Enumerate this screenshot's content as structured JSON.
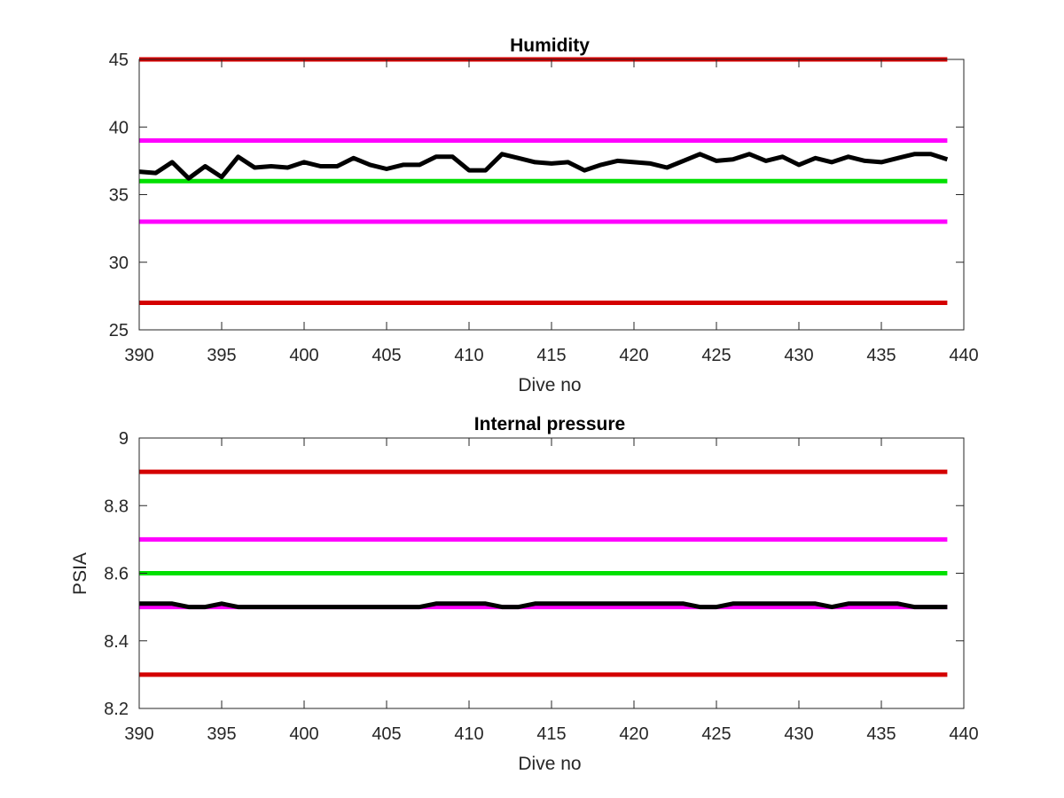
{
  "chart_data": [
    {
      "type": "line",
      "title": "Humidity",
      "xlabel": "Dive no",
      "ylabel": "",
      "xlim": [
        390,
        440
      ],
      "ylim": [
        25,
        45
      ],
      "xticks": [
        390,
        395,
        400,
        405,
        410,
        415,
        420,
        425,
        430,
        435,
        440
      ],
      "yticks": [
        25,
        30,
        35,
        40,
        45
      ],
      "grid": false,
      "reference_lines": [
        {
          "y": 45,
          "color": "#d40000"
        },
        {
          "y": 39,
          "color": "#ff00ff"
        },
        {
          "y": 36,
          "color": "#00e000"
        },
        {
          "y": 33,
          "color": "#ff00ff"
        },
        {
          "y": 27,
          "color": "#d40000"
        }
      ],
      "series": [
        {
          "color": "#000000",
          "x": [
            390,
            391,
            392,
            393,
            394,
            395,
            396,
            397,
            398,
            399,
            400,
            401,
            402,
            403,
            404,
            405,
            406,
            407,
            408,
            409,
            410,
            411,
            412,
            413,
            414,
            415,
            416,
            417,
            418,
            419,
            420,
            421,
            422,
            423,
            424,
            425,
            426,
            427,
            428,
            429,
            430,
            431,
            432,
            433,
            434,
            435,
            436,
            437,
            438,
            439
          ],
          "values": [
            36.7,
            36.6,
            37.4,
            36.2,
            37.1,
            36.3,
            37.8,
            37.0,
            37.1,
            37.0,
            37.4,
            37.1,
            37.1,
            37.7,
            37.2,
            36.9,
            37.2,
            37.2,
            37.8,
            37.8,
            36.8,
            36.8,
            38.0,
            37.7,
            37.4,
            37.3,
            37.4,
            36.8,
            37.2,
            37.5,
            37.4,
            37.3,
            37.0,
            37.5,
            38.0,
            37.5,
            37.6,
            38.0,
            37.5,
            37.8,
            37.2,
            37.7,
            37.4,
            37.8,
            37.5,
            37.4,
            37.7,
            38.0,
            38.0,
            37.6
          ]
        }
      ]
    },
    {
      "type": "line",
      "title": "Internal pressure",
      "xlabel": "Dive no",
      "ylabel": "PSIA",
      "xlim": [
        390,
        440
      ],
      "ylim": [
        8.2,
        9
      ],
      "xticks": [
        390,
        395,
        400,
        405,
        410,
        415,
        420,
        425,
        430,
        435,
        440
      ],
      "yticks": [
        8.2,
        8.4,
        8.6,
        8.8,
        9
      ],
      "grid": false,
      "reference_lines": [
        {
          "y": 8.9,
          "color": "#d40000"
        },
        {
          "y": 8.7,
          "color": "#ff00ff"
        },
        {
          "y": 8.6,
          "color": "#00e000"
        },
        {
          "y": 8.5,
          "color": "#ff00ff"
        },
        {
          "y": 8.3,
          "color": "#d40000"
        }
      ],
      "series": [
        {
          "color": "#000000",
          "x": [
            390,
            391,
            392,
            393,
            394,
            395,
            396,
            397,
            398,
            399,
            400,
            401,
            402,
            403,
            404,
            405,
            406,
            407,
            408,
            409,
            410,
            411,
            412,
            413,
            414,
            415,
            416,
            417,
            418,
            419,
            420,
            421,
            422,
            423,
            424,
            425,
            426,
            427,
            428,
            429,
            430,
            431,
            432,
            433,
            434,
            435,
            436,
            437,
            438,
            439
          ],
          "values": [
            8.51,
            8.51,
            8.51,
            8.5,
            8.5,
            8.51,
            8.5,
            8.5,
            8.5,
            8.5,
            8.5,
            8.5,
            8.5,
            8.5,
            8.5,
            8.5,
            8.5,
            8.5,
            8.51,
            8.51,
            8.51,
            8.51,
            8.5,
            8.5,
            8.51,
            8.51,
            8.51,
            8.51,
            8.51,
            8.51,
            8.51,
            8.51,
            8.51,
            8.51,
            8.5,
            8.5,
            8.51,
            8.51,
            8.51,
            8.51,
            8.51,
            8.51,
            8.5,
            8.51,
            8.51,
            8.51,
            8.51,
            8.5,
            8.5,
            8.5
          ]
        }
      ]
    }
  ]
}
